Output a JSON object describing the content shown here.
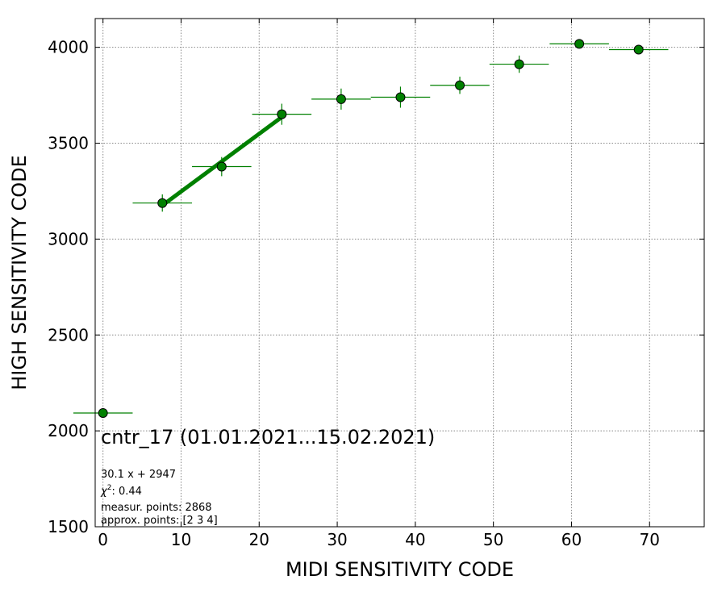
{
  "chart_data": {
    "type": "scatter",
    "xlabel": "MIDI SENSITIVITY CODE",
    "ylabel": "HIGH SENSITIVITY CODE",
    "xlim": [
      -1,
      77
    ],
    "ylim": [
      1500,
      4150
    ],
    "x_ticks": [
      "0",
      "10",
      "20",
      "30",
      "40",
      "50",
      "60",
      "70"
    ],
    "y_ticks": [
      "1500",
      "2000",
      "2500",
      "3000",
      "3500",
      "4000"
    ],
    "grid": true,
    "marker_color": "#008000",
    "fit_color": "#008000",
    "points": [
      {
        "x": 0.0,
        "y": 2093,
        "xerr": 3.8,
        "yerr": 8
      },
      {
        "x": 7.6,
        "y": 3188,
        "xerr": 3.8,
        "yerr": 45
      },
      {
        "x": 15.2,
        "y": 3378,
        "xerr": 3.8,
        "yerr": 50
      },
      {
        "x": 22.9,
        "y": 3651,
        "xerr": 3.8,
        "yerr": 55
      },
      {
        "x": 30.5,
        "y": 3730,
        "xerr": 3.8,
        "yerr": 55
      },
      {
        "x": 38.1,
        "y": 3740,
        "xerr": 3.8,
        "yerr": 55
      },
      {
        "x": 45.7,
        "y": 3802,
        "xerr": 3.8,
        "yerr": 45
      },
      {
        "x": 53.3,
        "y": 3912,
        "xerr": 3.8,
        "yerr": 45
      },
      {
        "x": 61.0,
        "y": 4018,
        "xerr": 3.8,
        "yerr": 20
      },
      {
        "x": 68.6,
        "y": 3988,
        "xerr": 3.8,
        "yerr": 20
      }
    ],
    "fit_line": {
      "x_start": 7.6,
      "x_end": 22.9,
      "slope": 30.1,
      "intercept": 2947
    },
    "annotations": {
      "title": "cntr_17 (01.01.2021...15.02.2021)",
      "fit_equation": "30.1 x + 2947",
      "chi_label": "χ",
      "chi_exp": "2",
      "chi_value": ": 0.44",
      "measur_points": "measur. points: 2868",
      "approx_points": "approx. points: [2 3 4]"
    }
  }
}
